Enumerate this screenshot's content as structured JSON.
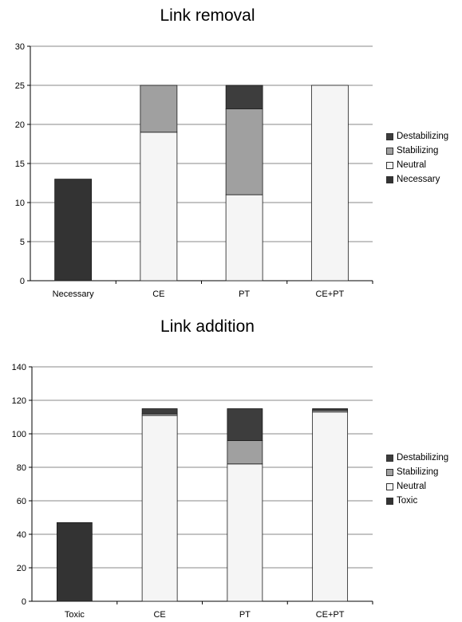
{
  "chart_data": [
    {
      "type": "bar",
      "stacked": true,
      "title": "Link removal",
      "categories": [
        "Necessary",
        "CE",
        "PT",
        "CE+PT"
      ],
      "ylim": [
        0,
        30
      ],
      "yticks": [
        0,
        5,
        10,
        15,
        20,
        25,
        30
      ],
      "grid": true,
      "legend_position": "right",
      "series": [
        {
          "name": "Necessary",
          "color": "#333333",
          "values": [
            13,
            0,
            0,
            0
          ]
        },
        {
          "name": "Neutral",
          "color": "#f5f5f5",
          "values": [
            0,
            19,
            11,
            25
          ]
        },
        {
          "name": "Stabilizing",
          "color": "#a0a0a0",
          "values": [
            0,
            6,
            11,
            0
          ]
        },
        {
          "name": "Destabilizing",
          "color": "#3d3d3d",
          "values": [
            0,
            0,
            3,
            0
          ]
        }
      ],
      "legend_order": [
        "Destabilizing",
        "Stabilizing",
        "Neutral",
        "Necessary"
      ]
    },
    {
      "type": "bar",
      "stacked": true,
      "title": "Link addition",
      "categories": [
        "Toxic",
        "CE",
        "PT",
        "CE+PT"
      ],
      "ylim": [
        0,
        140
      ],
      "yticks": [
        0,
        20,
        40,
        60,
        80,
        100,
        120,
        140
      ],
      "grid": true,
      "legend_position": "right",
      "series": [
        {
          "name": "Toxic",
          "color": "#333333",
          "values": [
            47,
            0,
            0,
            0
          ]
        },
        {
          "name": "Neutral",
          "color": "#f5f5f5",
          "values": [
            0,
            111,
            82,
            113
          ]
        },
        {
          "name": "Stabilizing",
          "color": "#a0a0a0",
          "values": [
            0,
            1,
            14,
            1
          ]
        },
        {
          "name": "Destabilizing",
          "color": "#3d3d3d",
          "values": [
            0,
            3,
            19,
            1
          ]
        }
      ],
      "legend_order": [
        "Destabilizing",
        "Stabilizing",
        "Neutral",
        "Toxic"
      ]
    }
  ]
}
